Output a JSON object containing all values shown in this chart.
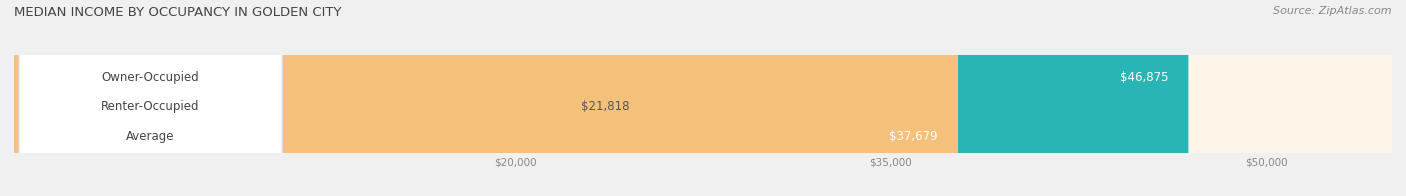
{
  "title": "MEDIAN INCOME BY OCCUPANCY IN GOLDEN CITY",
  "source": "Source: ZipAtlas.com",
  "categories": [
    "Owner-Occupied",
    "Renter-Occupied",
    "Average"
  ],
  "values": [
    46875,
    21818,
    37679
  ],
  "labels": [
    "$46,875",
    "$21,818",
    "$37,679"
  ],
  "bar_colors": [
    "#29b5b5",
    "#c4a8d0",
    "#f5c07a"
  ],
  "bar_bg_colors": [
    "#eaf6f6",
    "#f3eff7",
    "#fdf4e8"
  ],
  "xmin": 0,
  "xmax": 55000,
  "xticks": [
    20000,
    35000,
    50000
  ],
  "xtick_labels": [
    "$20,000",
    "$35,000",
    "$50,000"
  ],
  "figsize": [
    14.06,
    1.96
  ],
  "dpi": 100,
  "title_fontsize": 9.5,
  "source_fontsize": 8,
  "label_fontsize": 8.5,
  "bar_label_fontsize": 8.5,
  "bg_color": "#f0f0f0"
}
